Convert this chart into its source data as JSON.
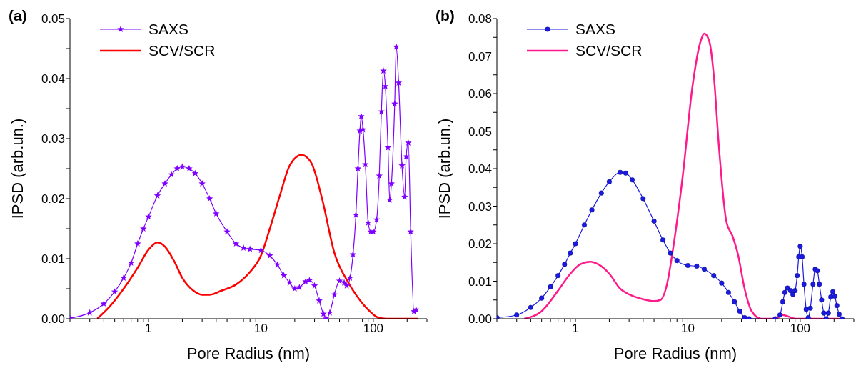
{
  "chart_data": [
    {
      "type": "line",
      "title": "(a)",
      "xlabel": "Pore Radius (nm)",
      "ylabel": "IPSD (arb.un.)",
      "log": "x",
      "legend": "top left",
      "line_style": "solid",
      "xlim": [
        0.2,
        300
      ],
      "xticks": [
        {
          "value": 0.2,
          "label": null
        },
        {
          "value": 0.3,
          "label": null
        },
        {
          "value": 0.4,
          "label": null
        },
        {
          "value": 0.5,
          "label": null
        },
        {
          "value": 0.6,
          "label": null
        },
        {
          "value": 0.7,
          "label": null
        },
        {
          "value": 0.8,
          "label": null
        },
        {
          "value": 0.9,
          "label": null
        },
        1,
        {
          "value": 2,
          "label": null
        },
        {
          "value": 3,
          "label": null
        },
        {
          "value": 4,
          "label": null
        },
        {
          "value": 5,
          "label": null
        },
        {
          "value": 6,
          "label": null
        },
        {
          "value": 7,
          "label": null
        },
        {
          "value": 8,
          "label": null
        },
        {
          "value": 9,
          "label": null
        },
        10,
        {
          "value": 20,
          "label": null
        },
        {
          "value": 30,
          "label": null
        },
        {
          "value": 40,
          "label": null
        },
        {
          "value": 50,
          "label": null
        },
        {
          "value": 60,
          "label": null
        },
        {
          "value": 70,
          "label": null
        },
        {
          "value": 80,
          "label": null
        },
        {
          "value": 90,
          "label": null
        },
        100,
        {
          "value": 200,
          "label": null
        },
        {
          "value": 300,
          "label": null
        }
      ],
      "ylim": [
        0,
        0.05
      ],
      "yticks": [
        {
          "value": 0,
          "label": "0.00"
        },
        {
          "value": 0.005,
          "label": null
        },
        {
          "value": 0.01,
          "label": "0.01"
        },
        {
          "value": 0.015,
          "label": null
        },
        {
          "value": 0.02,
          "label": "0.02"
        },
        {
          "value": 0.025,
          "label": null
        },
        {
          "value": 0.03,
          "label": "0.03"
        },
        {
          "value": 0.035,
          "label": null
        },
        {
          "value": 0.04,
          "label": "0.04"
        },
        {
          "value": 0.045,
          "label": null
        },
        {
          "value": 0.05,
          "label": "0.05"
        }
      ],
      "series": [
        {
          "name": "SAXS",
          "color": "#7f00ff",
          "marker": "star",
          "x": [
            0.2,
            0.3,
            0.4,
            0.5,
            0.6,
            0.7,
            0.8,
            0.9,
            1.0,
            1.2,
            1.4,
            1.6,
            1.8,
            2.0,
            2.3,
            2.6,
            3.0,
            3.5,
            4.0,
            5.0,
            6.0,
            7.0,
            8.0,
            10,
            12,
            14,
            16,
            18,
            20,
            22,
            25,
            27,
            30,
            33,
            36,
            38,
            41,
            45,
            50,
            55,
            58,
            62,
            66,
            70,
            73,
            76,
            78,
            81,
            85,
            90,
            95,
            100,
            107,
            113,
            118,
            123,
            128,
            135,
            140,
            145,
            155,
            160,
            168,
            180,
            190,
            196,
            205,
            215,
            230,
            240
          ],
          "values": [
            0.0001,
            0.001,
            0.0025,
            0.0045,
            0.0068,
            0.0093,
            0.0125,
            0.015,
            0.017,
            0.0205,
            0.0225,
            0.024,
            0.025,
            0.0253,
            0.025,
            0.0242,
            0.0225,
            0.02,
            0.0175,
            0.0145,
            0.0125,
            0.0118,
            0.0116,
            0.0114,
            0.0105,
            0.009,
            0.0072,
            0.006,
            0.005,
            0.0052,
            0.0062,
            0.0064,
            0.0055,
            0.003,
            0.0008,
            0.0,
            0.001,
            0.004,
            0.0063,
            0.006,
            0.0055,
            0.0068,
            0.0107,
            0.0173,
            0.025,
            0.0313,
            0.0337,
            0.0315,
            0.0257,
            0.016,
            0.0145,
            0.0145,
            0.0165,
            0.0238,
            0.0345,
            0.0413,
            0.0387,
            0.0285,
            0.0198,
            0.0225,
            0.0358,
            0.0453,
            0.0393,
            0.0255,
            0.0203,
            0.027,
            0.0293,
            0.0145,
            0.0012,
            0.0015
          ]
        },
        {
          "name": "SCV/SCR",
          "color": "#ff0000",
          "marker": "none",
          "x": [
            0.35,
            0.45,
            0.6,
            0.8,
            1.0,
            1.2,
            1.4,
            1.7,
            2.0,
            2.5,
            3.0,
            3.5,
            4.5,
            6,
            8,
            10,
            12,
            15,
            18,
            23,
            28,
            35,
            45,
            60,
            70,
            90,
            110,
            130,
            250
          ],
          "values": [
            0,
            0.002,
            0.005,
            0.0085,
            0.0115,
            0.0127,
            0.012,
            0.0095,
            0.0068,
            0.0047,
            0.004,
            0.004,
            0.0047,
            0.0057,
            0.0078,
            0.0105,
            0.015,
            0.021,
            0.0255,
            0.0273,
            0.026,
            0.02,
            0.011,
            0.006,
            0.004,
            0.0015,
            0.0002,
            0,
            0
          ]
        }
      ]
    },
    {
      "type": "line",
      "title": "(b)",
      "xlabel": "Pore Radius (nm)",
      "ylabel": "IPSD (arb.un.)",
      "log": "x",
      "legend": "top left",
      "line_style": "solid",
      "xlim": [
        0.2,
        300
      ],
      "xticks": [
        {
          "value": 0.2,
          "label": null
        },
        {
          "value": 0.3,
          "label": null
        },
        {
          "value": 0.4,
          "label": null
        },
        {
          "value": 0.5,
          "label": null
        },
        {
          "value": 0.6,
          "label": null
        },
        {
          "value": 0.7,
          "label": null
        },
        {
          "value": 0.8,
          "label": null
        },
        {
          "value": 0.9,
          "label": null
        },
        1,
        {
          "value": 2,
          "label": null
        },
        {
          "value": 3,
          "label": null
        },
        {
          "value": 4,
          "label": null
        },
        {
          "value": 5,
          "label": null
        },
        {
          "value": 6,
          "label": null
        },
        {
          "value": 7,
          "label": null
        },
        {
          "value": 8,
          "label": null
        },
        {
          "value": 9,
          "label": null
        },
        10,
        {
          "value": 20,
          "label": null
        },
        {
          "value": 30,
          "label": null
        },
        {
          "value": 40,
          "label": null
        },
        {
          "value": 50,
          "label": null
        },
        {
          "value": 60,
          "label": null
        },
        {
          "value": 70,
          "label": null
        },
        {
          "value": 80,
          "label": null
        },
        {
          "value": 90,
          "label": null
        },
        100,
        {
          "value": 200,
          "label": null
        },
        {
          "value": 300,
          "label": null
        }
      ],
      "ylim": [
        0,
        0.08
      ],
      "yticks": [
        {
          "value": 0,
          "label": "0.00"
        },
        {
          "value": 0.005,
          "label": null
        },
        {
          "value": 0.01,
          "label": "0.01"
        },
        {
          "value": 0.015,
          "label": null
        },
        {
          "value": 0.02,
          "label": "0.02"
        },
        {
          "value": 0.025,
          "label": null
        },
        {
          "value": 0.03,
          "label": "0.03"
        },
        {
          "value": 0.035,
          "label": null
        },
        {
          "value": 0.04,
          "label": "0.04"
        },
        {
          "value": 0.045,
          "label": null
        },
        {
          "value": 0.05,
          "label": "0.05"
        },
        {
          "value": 0.055,
          "label": null
        },
        {
          "value": 0.06,
          "label": "0.06"
        },
        {
          "value": 0.065,
          "label": null
        },
        {
          "value": 0.07,
          "label": "0.07"
        },
        {
          "value": 0.075,
          "label": null
        },
        {
          "value": 0.08,
          "label": "0.08"
        }
      ],
      "series": [
        {
          "name": "SAXS",
          "color": "#1a1ae0",
          "marker": "circle",
          "x": [
            0.2,
            0.3,
            0.4,
            0.5,
            0.6,
            0.7,
            0.8,
            0.9,
            1.0,
            1.2,
            1.4,
            1.7,
            2.0,
            2.5,
            2.8,
            3.2,
            4.0,
            5.0,
            6.0,
            7.0,
            8.0,
            10,
            12,
            14,
            17,
            20,
            23,
            26,
            29,
            32,
            35,
            60,
            66,
            70,
            73,
            77,
            82,
            86,
            90,
            94,
            97,
            100,
            104,
            108,
            113,
            118,
            123,
            130,
            136,
            142,
            148,
            155,
            162,
            170,
            178,
            187,
            195,
            203,
            212,
            222,
            235
          ],
          "values": [
            0.0003,
            0.001,
            0.003,
            0.0055,
            0.0085,
            0.0115,
            0.0145,
            0.0175,
            0.02,
            0.025,
            0.029,
            0.0335,
            0.0365,
            0.039,
            0.0388,
            0.037,
            0.032,
            0.026,
            0.021,
            0.0175,
            0.0155,
            0.0142,
            0.014,
            0.0132,
            0.0115,
            0.0095,
            0.007,
            0.0045,
            0.002,
            0.0003,
            0,
            0,
            0.001,
            0.0045,
            0.007,
            0.0082,
            0.0075,
            0.0065,
            0.0075,
            0.0115,
            0.0165,
            0.0193,
            0.0165,
            0.0092,
            0.0025,
            0.0003,
            0.0028,
            0.0092,
            0.0132,
            0.0128,
            0.0092,
            0.005,
            0.0015,
            0,
            0.0015,
            0.0058,
            0.0072,
            0.006,
            0.0035,
            0.0012,
            0
          ]
        },
        {
          "name": "SCV/SCR",
          "color": "#ff1a8c",
          "marker": "none",
          "x": [
            0.35,
            0.5,
            0.7,
            0.9,
            1.1,
            1.35,
            1.6,
            2.0,
            2.5,
            3.0,
            4.0,
            5.0,
            5.7,
            6.5,
            7.5,
            9,
            11,
            13,
            14,
            15.5,
            17,
            19,
            22,
            25,
            28,
            32,
            37,
            45,
            60,
            70,
            80,
            90,
            250
          ],
          "values": [
            0,
            0.002,
            0.0075,
            0.012,
            0.0145,
            0.0152,
            0.0145,
            0.012,
            0.008,
            0.0065,
            0.0052,
            0.0047,
            0.005,
            0.009,
            0.02,
            0.038,
            0.062,
            0.074,
            0.076,
            0.074,
            0.065,
            0.045,
            0.026,
            0.022,
            0.017,
            0.008,
            0.002,
            0,
            0,
            0.001,
            0.0005,
            0,
            0
          ]
        }
      ]
    }
  ]
}
